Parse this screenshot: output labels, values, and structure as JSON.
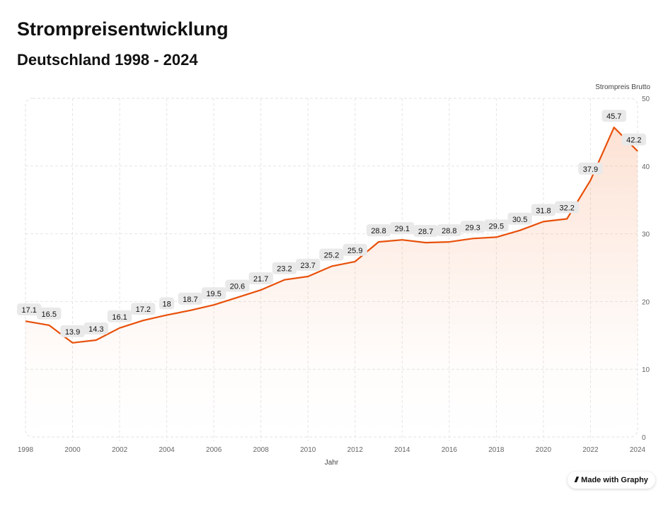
{
  "title": "Strompreisentwicklung",
  "subtitle": "Deutschland 1998 - 2024",
  "badge": {
    "label": "Made with Graphy",
    "icon": "graphy-logo-icon"
  },
  "chart_data": {
    "type": "area",
    "title": "Strompreisentwicklung",
    "subtitle": "Deutschland 1998 - 2024",
    "xlabel": "Jahr",
    "ylabel": "Strompreis Brutto",
    "x": [
      1998,
      1999,
      2000,
      2001,
      2002,
      2003,
      2004,
      2005,
      2006,
      2007,
      2008,
      2009,
      2010,
      2011,
      2012,
      2013,
      2014,
      2015,
      2016,
      2017,
      2018,
      2019,
      2020,
      2021,
      2022,
      2023,
      2024
    ],
    "values": [
      17.1,
      16.5,
      13.9,
      14.3,
      16.1,
      17.2,
      18,
      18.7,
      19.5,
      20.6,
      21.7,
      23.2,
      23.7,
      25.2,
      25.9,
      28.8,
      29.1,
      28.7,
      28.8,
      29.3,
      29.5,
      30.5,
      31.8,
      32.2,
      37.9,
      45.7,
      42.2
    ],
    "xticks": [
      1998,
      2000,
      2002,
      2004,
      2006,
      2008,
      2010,
      2012,
      2014,
      2016,
      2018,
      2020,
      2022,
      2024
    ],
    "yticks": [
      0,
      10,
      20,
      30,
      40,
      50
    ],
    "xlim": [
      1998,
      2024
    ],
    "ylim": [
      0,
      50
    ],
    "grid": true,
    "y_axis_position": "right",
    "line_color": "#e8500a",
    "fill_color": "#f47b3c"
  }
}
